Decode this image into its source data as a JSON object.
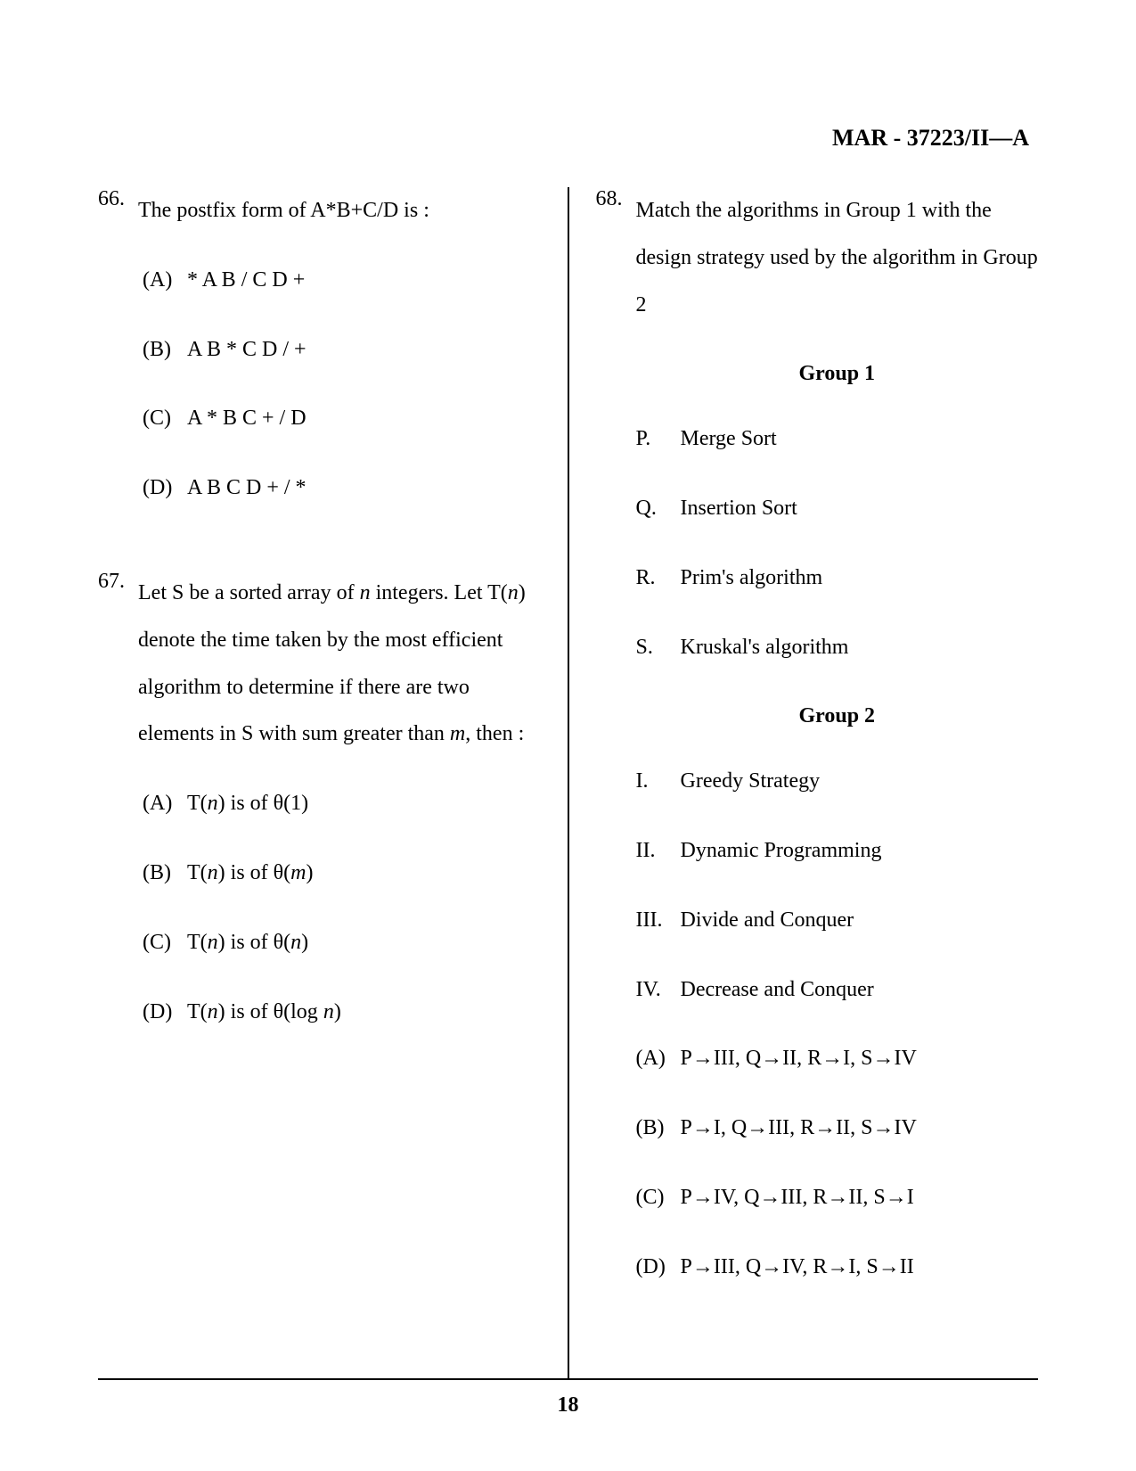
{
  "header": "MAR - 37223/II—A",
  "page_number": "18",
  "questions": {
    "q66": {
      "number": "66.",
      "text": "The postfix form of A*B+C/D is :",
      "options": {
        "a": {
          "label": "(A)",
          "text": "* A B / C D +"
        },
        "b": {
          "label": "(B)",
          "text": "A B * C D / +"
        },
        "c": {
          "label": "(C)",
          "text": "A * B C + / D"
        },
        "d": {
          "label": "(D)",
          "text": "A B C D + / *"
        }
      }
    },
    "q67": {
      "number": "67.",
      "text_prefix": "Let S be a sorted array of ",
      "text_n1": "n",
      "text_mid1": " integers. Let T(",
      "text_n2": "n",
      "text_mid2": ") denote the time taken by the most efficient algorithm to determine if there are two elements in S with sum greater than ",
      "text_m": "m",
      "text_suffix": ", then :",
      "options": {
        "a": {
          "label": "(A)",
          "prefix": "T(",
          "n": "n",
          "mid": ") is of θ(1)"
        },
        "b": {
          "label": "(B)",
          "prefix": "T(",
          "n": "n",
          "mid": ") is of θ(",
          "var": "m",
          "suffix": ")"
        },
        "c": {
          "label": "(C)",
          "prefix": "T(",
          "n": "n",
          "mid": ") is of θ(",
          "var": "n",
          "suffix": ")"
        },
        "d": {
          "label": "(D)",
          "prefix": "T(",
          "n": "n",
          "mid": ") is of θ(log ",
          "var": "n",
          "suffix": ")"
        }
      }
    },
    "q68": {
      "number": "68.",
      "text": "Match the algorithms in Group 1 with the design strategy used by the algorithm in Group 2",
      "group1_header": "Group 1",
      "group1": {
        "p": {
          "label": "P.",
          "text": "Merge Sort"
        },
        "q": {
          "label": "Q.",
          "text": "Insertion Sort"
        },
        "r": {
          "label": "R.",
          "text": "Prim's algorithm"
        },
        "s": {
          "label": "S.",
          "text": "Kruskal's algorithm"
        }
      },
      "group2_header": "Group 2",
      "group2": {
        "i": {
          "label": "I.",
          "text": "Greedy Strategy"
        },
        "ii": {
          "label": "II.",
          "text": "Dynamic Programming"
        },
        "iii": {
          "label": "III.",
          "text": "Divide and Conquer"
        },
        "iv": {
          "label": "IV.",
          "text": "Decrease and Conquer"
        }
      },
      "options": {
        "a": {
          "label": "(A)",
          "text": "P→III, Q→II, R→I, S→IV"
        },
        "b": {
          "label": "(B)",
          "text": "P→I, Q→III, R→II, S→IV"
        },
        "c": {
          "label": "(C)",
          "text": "P→IV, Q→III, R→II, S→I"
        },
        "d": {
          "label": "(D)",
          "text": "P→III, Q→IV, R→I, S→II"
        }
      }
    }
  }
}
